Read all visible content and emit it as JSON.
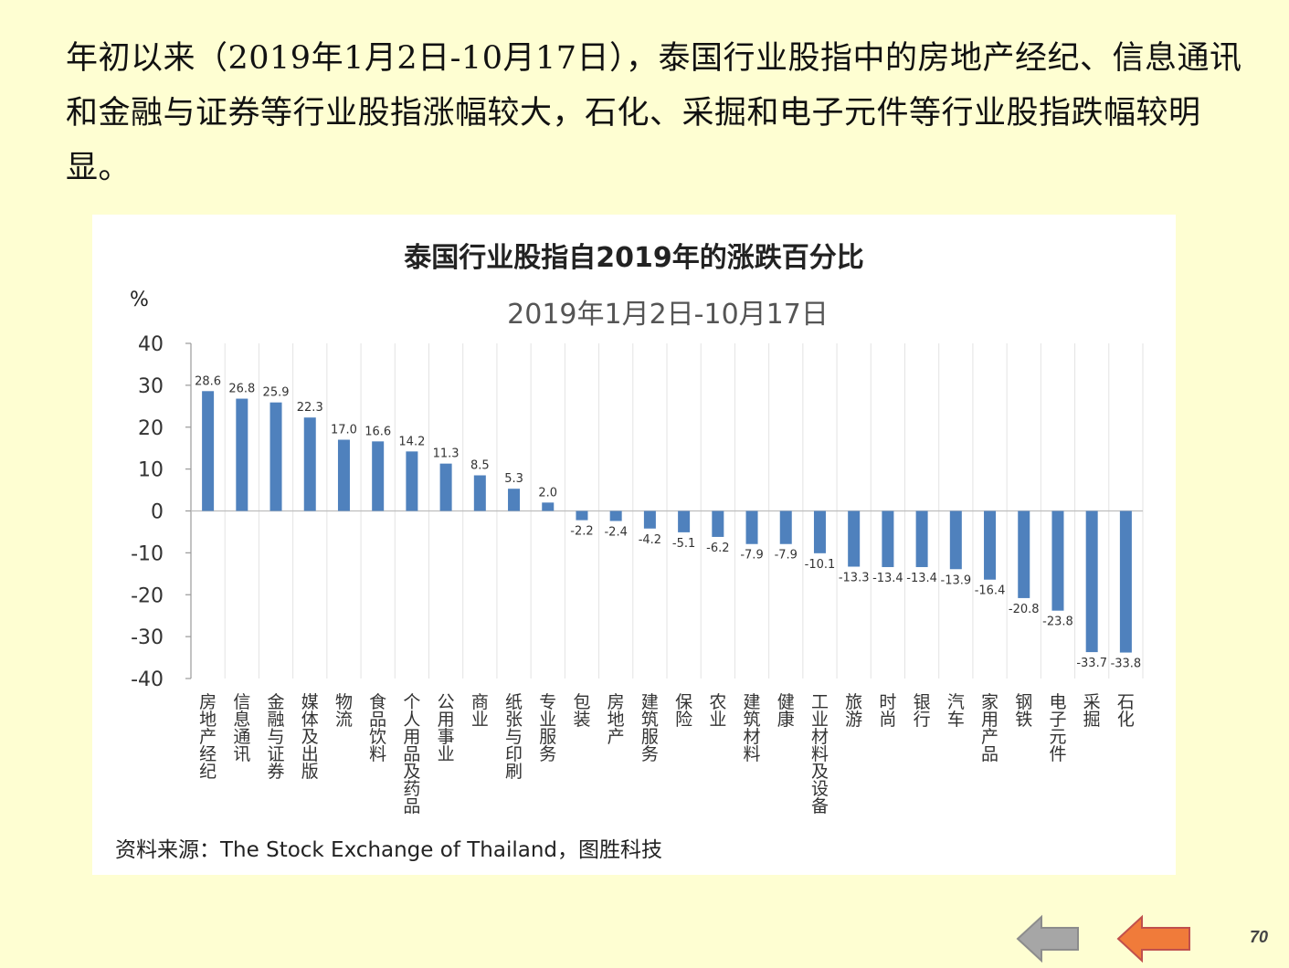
{
  "intro_text": "年初以来（2019年1月2日-10月17日），泰国行业股指中的房地产经纪、信息通讯和金融与证券等行业股指涨幅较大，石化、采掘和电子元件等行业股指跌幅较明显。",
  "source": "资料来源：The Stock Exchange of Thailand，图胜科技",
  "page_number": "70",
  "colors": {
    "bar": "#4f81bd",
    "background": "#fefed2",
    "nav_back": "#a6a6a6",
    "nav_forward": "#f07b3a"
  },
  "nav": {
    "back_icon": "left-arrow-icon",
    "forward_icon": "left-arrow-icon"
  },
  "chart_data": {
    "type": "bar",
    "title": "泰国行业股指自2019年的涨跌百分比",
    "subtitle": "2019年1月2日-10月17日",
    "ylabel": "%",
    "ylim": [
      -40,
      40
    ],
    "yticks": [
      40,
      30,
      20,
      10,
      0,
      -10,
      -20,
      -30,
      -40
    ],
    "categories": [
      "房地产经纪",
      "信息通讯",
      "金融与证券",
      "媒体及出版",
      "物流",
      "食品饮料",
      "个人用品及药品",
      "公用事业",
      "商业",
      "纸张与印刷",
      "专业服务",
      "包装",
      "房地产",
      "建筑服务",
      "保险",
      "农业",
      "建筑材料",
      "健康",
      "工业材料及设备",
      "旅游",
      "时尚",
      "银行",
      "汽车",
      "家用产品",
      "钢铁",
      "电子元件",
      "采掘",
      "石化"
    ],
    "values": [
      28.6,
      26.8,
      25.9,
      22.3,
      17.0,
      16.6,
      14.2,
      11.3,
      8.5,
      5.3,
      2.0,
      -2.2,
      -2.4,
      -4.2,
      -5.1,
      -6.2,
      -7.9,
      -7.9,
      -10.1,
      -13.3,
      -13.4,
      -13.4,
      -13.9,
      -16.4,
      -20.8,
      -23.8,
      -33.7,
      -33.8
    ],
    "value_labels": [
      "28.6",
      "26.8",
      "25.9",
      "22.3",
      "17.0",
      "16.6",
      "14.2",
      "11.3",
      "8.5",
      "5.3",
      "2.0",
      "-2.2",
      "-2.4",
      "-4.2",
      "-5.1",
      "-6.2",
      "-7.9",
      "-7.9",
      "-10.1",
      "-13.3",
      "-13.4",
      "-13.4",
      "-13.9",
      "-16.4",
      "-20.8",
      "-23.8",
      "-33.7",
      "-33.8"
    ],
    "grid": true
  }
}
